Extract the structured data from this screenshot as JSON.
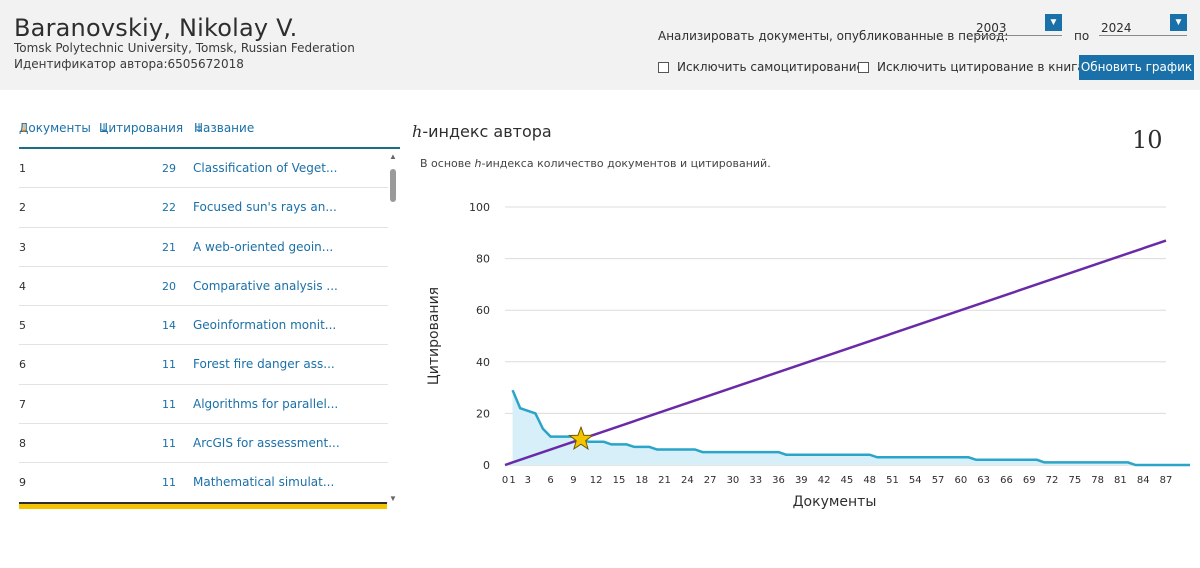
{
  "author": {
    "name": "Baranovskiy, Nikolay V.",
    "affiliation": "Tomsk Polytechnic University, Tomsk, Russian Federation",
    "id_label": "Идентификатор автора:",
    "id_value": "6505672018"
  },
  "filters": {
    "period_label": "Анализировать документы, опубликованные в период:",
    "from_year": "2003",
    "to_label": "по",
    "to_year": "2024",
    "exclude_self_label": "Исключить самоцитирование",
    "exclude_books_label": "Исключить цитирование в книгах",
    "update_button": "Обновить график"
  },
  "list": {
    "columns": {
      "documents": "Документы",
      "citations": "Цитирования",
      "title": "Название"
    },
    "rows": [
      {
        "num": "1",
        "cit": "29",
        "title": "Classification of Veget..."
      },
      {
        "num": "2",
        "cit": "22",
        "title": "Focused sun's rays an..."
      },
      {
        "num": "3",
        "cit": "21",
        "title": "A web-oriented geoin..."
      },
      {
        "num": "4",
        "cit": "20",
        "title": "Comparative analysis ..."
      },
      {
        "num": "5",
        "cit": "14",
        "title": "Geoinformation monit..."
      },
      {
        "num": "6",
        "cit": "11",
        "title": "Forest fire danger ass..."
      },
      {
        "num": "7",
        "cit": "11",
        "title": "Algorithms for parallel..."
      },
      {
        "num": "8",
        "cit": "11",
        "title": "ArcGIS for assessment..."
      },
      {
        "num": "9",
        "cit": "11",
        "title": "Mathematical simulat..."
      }
    ]
  },
  "hindex": {
    "title_prefix": "h",
    "title_rest": "-индекс автора",
    "value": "10",
    "desc_before": "В основе ",
    "desc_h": "h",
    "desc_after": "-индекса количество документов и цитирований."
  },
  "chart_data": {
    "type": "area",
    "xlabel": "Документы",
    "ylabel": "Цитирования",
    "xlim": [
      0,
      87
    ],
    "ylim": [
      0,
      100
    ],
    "y_ticks": [
      0,
      20,
      40,
      60,
      80,
      100
    ],
    "x_ticks": [
      0,
      1,
      3,
      6,
      9,
      12,
      15,
      18,
      21,
      24,
      27,
      30,
      33,
      36,
      39,
      42,
      45,
      48,
      51,
      54,
      57,
      60,
      63,
      66,
      69,
      72,
      75,
      78,
      81,
      84,
      87
    ],
    "citations_by_rank": [
      29,
      22,
      21,
      20,
      14,
      11,
      11,
      11,
      11,
      10,
      9,
      9,
      9,
      8,
      8,
      8,
      7,
      7,
      7,
      6,
      6,
      6,
      6,
      6,
      6,
      5,
      5,
      5,
      5,
      5,
      5,
      5,
      5,
      5,
      5,
      5,
      4,
      4,
      4,
      4,
      4,
      4,
      4,
      4,
      4,
      4,
      4,
      4,
      3,
      3,
      3,
      3,
      3,
      3,
      3,
      3,
      3,
      3,
      3,
      3,
      3,
      2,
      2,
      2,
      2,
      2,
      2,
      2,
      2,
      2,
      1,
      1,
      1,
      1,
      1,
      1,
      1,
      1,
      1,
      1,
      1,
      1,
      0,
      0,
      0,
      0,
      0,
      0,
      0,
      0,
      0,
      0,
      0
    ],
    "reference_line": {
      "name": "y = x",
      "from": [
        0,
        0
      ],
      "to": [
        87,
        87
      ]
    },
    "h_point": {
      "x": 10,
      "y": 10
    },
    "colors": {
      "area_fill": "#d6eff8",
      "area_line": "#2aa4c8",
      "diagonal": "#6a2aa8",
      "star": "#f5c400"
    }
  }
}
